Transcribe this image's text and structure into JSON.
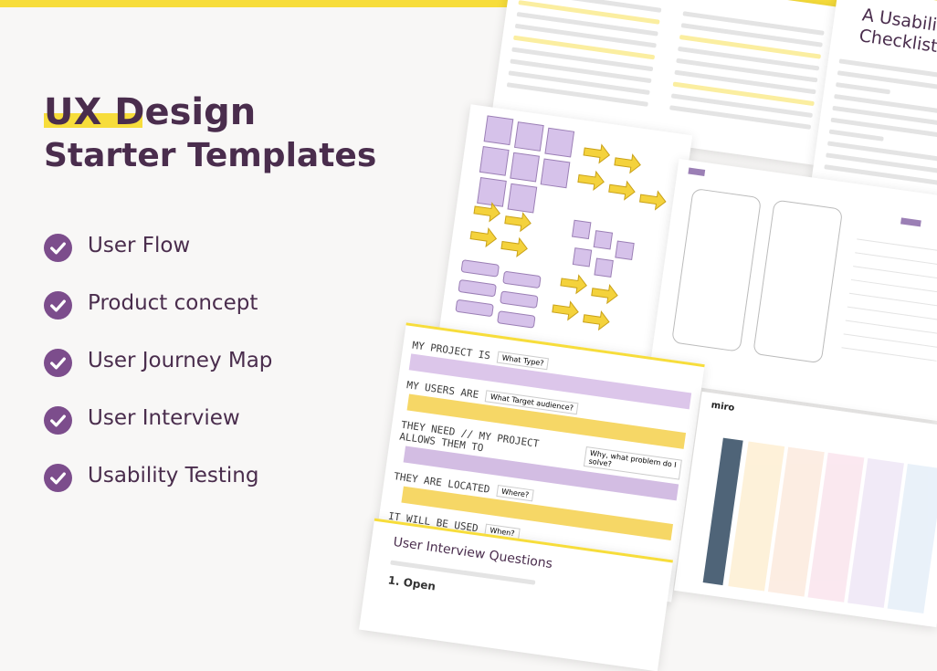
{
  "header": {
    "title_highlight": "UX Design",
    "title_rest": "Starter Templates"
  },
  "checklist": [
    "User Flow",
    "Product concept",
    "User Journey Map",
    "User Interview",
    "Usability Testing"
  ],
  "previews": {
    "usability_checklist": {
      "title": "A Usability Checklist"
    },
    "project_canvas": {
      "rows": [
        {
          "label": "MY PROJECT IS",
          "prompt": "What Type?"
        },
        {
          "label": "MY USERS ARE",
          "prompt": "What Target audience?"
        },
        {
          "label": "THEY NEED // MY PROJECT ALLOWS THEM TO",
          "prompt": "Why, what problem do I solve?"
        },
        {
          "label": "THEY ARE LOCATED",
          "prompt": "Where?"
        },
        {
          "label": "IT WILL BE USED",
          "prompt": "When?"
        }
      ]
    },
    "board": {
      "logo": "miro"
    },
    "interview": {
      "title": "User Interview Questions",
      "first_item": "1. Open"
    }
  }
}
